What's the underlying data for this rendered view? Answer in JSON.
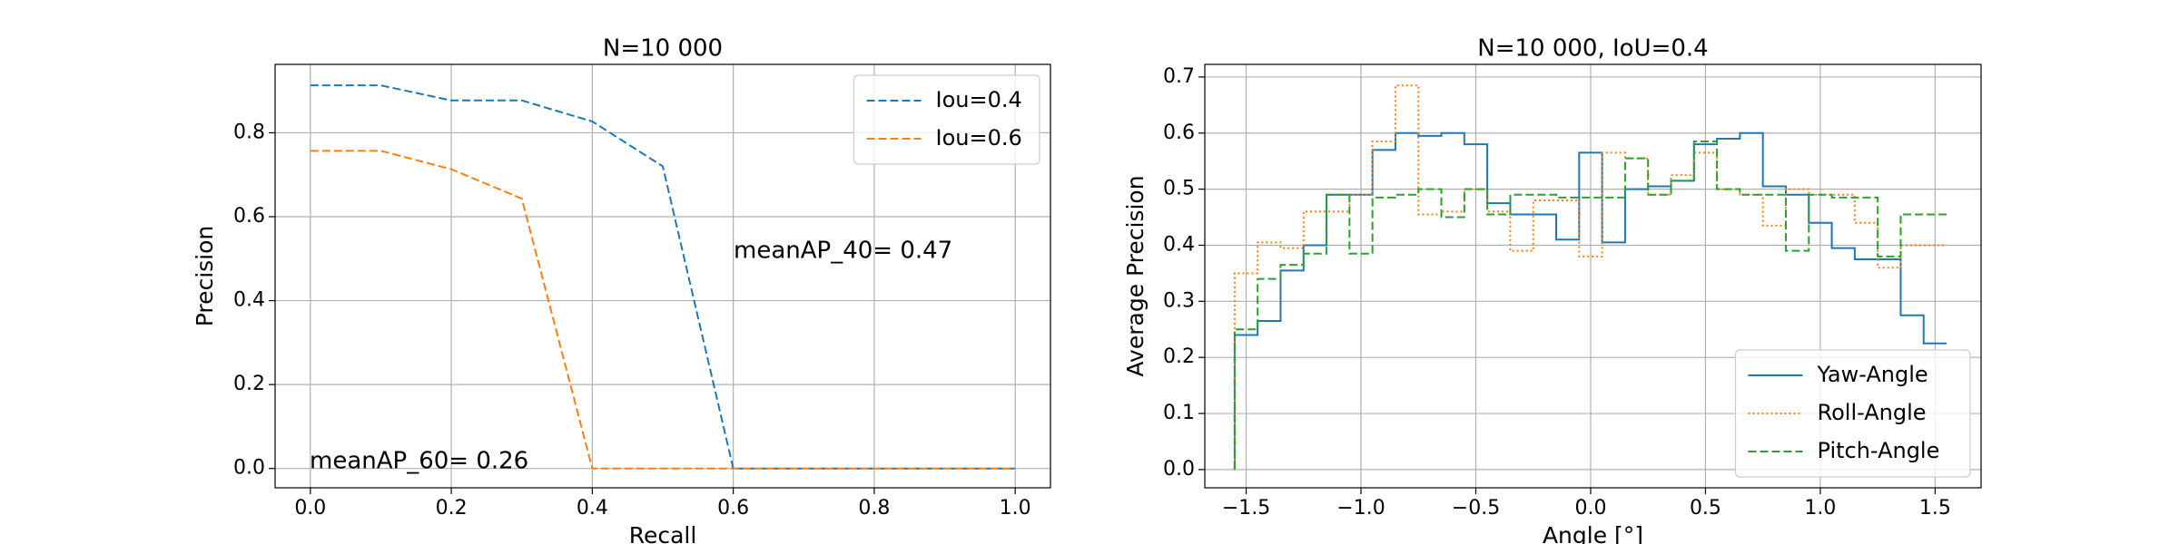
{
  "chart_data": [
    {
      "type": "line",
      "title": "N=10 000",
      "xlabel": "Recall",
      "ylabel": "Precision",
      "x": [
        0.0,
        0.1,
        0.2,
        0.3,
        0.4,
        0.5,
        0.6,
        0.7,
        0.8,
        0.9,
        1.0
      ],
      "series": [
        {
          "name": "Iou=0.4",
          "color": "#1f77b4",
          "linestyle": "dashed",
          "values": [
            0.913,
            0.913,
            0.877,
            0.877,
            0.827,
            0.72,
            0,
            0,
            0,
            0,
            0
          ]
        },
        {
          "name": "Iou=0.6",
          "color": "#ff7f0e",
          "linestyle": "dashed",
          "values": [
            0.757,
            0.757,
            0.713,
            0.643,
            0,
            0,
            0,
            0,
            0,
            0,
            0
          ]
        }
      ],
      "annotations": [
        "meanAP_40= 0.47",
        "meanAP_60= 0.26"
      ],
      "xlim": [
        -0.05,
        1.05
      ],
      "ylim": [
        -0.046,
        0.963
      ],
      "xticks": [
        {
          "value": 0,
          "label": "0.0"
        },
        0.2,
        0.4,
        0.6,
        0.8,
        {
          "value": 1,
          "label": "1.0"
        }
      ],
      "yticks": [
        {
          "value": 0,
          "label": "0.0"
        },
        0.2,
        0.4,
        0.6,
        0.8
      ],
      "grid": true,
      "legend": "upper right"
    },
    {
      "type": "step",
      "title": "N=10 000, IoU=0.4",
      "xlabel": "Angle [°]",
      "ylabel": "Average Precision",
      "x": [
        -1.55,
        -1.45,
        -1.35,
        -1.25,
        -1.15,
        -1.05,
        -0.95,
        -0.85,
        -0.75,
        -0.65,
        -0.55,
        -0.45,
        -0.35,
        -0.25,
        -0.15,
        -0.05,
        0.05,
        0.15,
        0.25,
        0.35,
        0.45,
        0.55,
        0.65,
        0.75,
        0.85,
        0.95,
        1.05,
        1.15,
        1.25,
        1.35,
        1.45,
        1.55
      ],
      "series": [
        {
          "name": "Yaw-Angle",
          "color": "#1f77b4",
          "linestyle": "solid",
          "values": [
            0,
            0.24,
            0.265,
            0.355,
            0.4,
            0.49,
            0.49,
            0.57,
            0.6,
            0.595,
            0.6,
            0.58,
            0.475,
            0.455,
            0.455,
            0.41,
            0.565,
            0.405,
            0.5,
            0.505,
            0.515,
            0.58,
            0.59,
            0.6,
            0.505,
            0.49,
            0.44,
            0.395,
            0.375,
            0.375,
            0.275,
            0.225
          ]
        },
        {
          "name": "Roll-Angle",
          "color": "#ff7f0e",
          "linestyle": "dotted",
          "values": [
            0,
            0.35,
            0.405,
            0.395,
            0.46,
            0.46,
            0.49,
            0.585,
            0.685,
            0.455,
            0.46,
            0.5,
            0.46,
            0.39,
            0.48,
            0.48,
            0.38,
            0.565,
            0.555,
            0.49,
            0.525,
            0.565,
            0.5,
            0.49,
            0.435,
            0.5,
            0.49,
            0.49,
            0.44,
            0.36,
            0.4,
            0.4
          ]
        },
        {
          "name": "Pitch-Angle",
          "color": "#2ca02c",
          "linestyle": "dashed",
          "values": [
            0,
            0.25,
            0.34,
            0.365,
            0.385,
            0.49,
            0.385,
            0.485,
            0.49,
            0.5,
            0.45,
            0.5,
            0.455,
            0.49,
            0.49,
            0.485,
            0.485,
            0.485,
            0.555,
            0.49,
            0.515,
            0.585,
            0.5,
            0.49,
            0.49,
            0.39,
            0.49,
            0.485,
            0.485,
            0.38,
            0.455,
            0.455
          ]
        }
      ],
      "xlim": [
        -1.68,
        1.7
      ],
      "ylim": [
        -0.0325,
        0.7225
      ],
      "xticks": [
        {
          "value": -1.5,
          "label": "−1.5"
        },
        {
          "value": -1,
          "label": "−1.0"
        },
        {
          "value": -0.5,
          "label": "−0.5"
        },
        {
          "value": 0,
          "label": "0.0"
        },
        0.5,
        {
          "value": 1,
          "label": "1.0"
        },
        1.5
      ],
      "yticks": [
        {
          "value": 0,
          "label": "0.0"
        },
        0.1,
        0.2,
        0.3,
        0.4,
        0.5,
        0.6,
        0.7
      ],
      "grid": true,
      "legend": "lower right"
    }
  ]
}
